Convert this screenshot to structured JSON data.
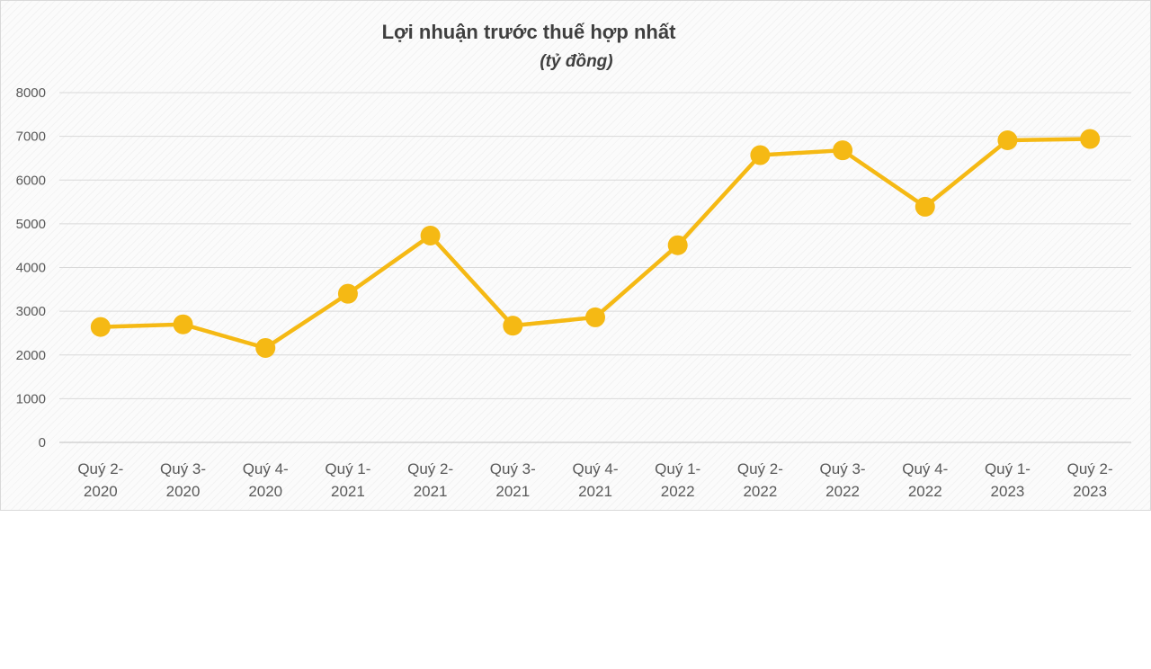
{
  "chart_data": {
    "type": "line",
    "title": "Lợi nhuận trước thuế hợp nhất",
    "subtitle": "(tỷ đồng)",
    "categories": [
      [
        "Quý 2-",
        "2020"
      ],
      [
        "Quý 3-",
        "2020"
      ],
      [
        "Quý 4-",
        "2020"
      ],
      [
        "Quý 1-",
        "2021"
      ],
      [
        "Quý 2-",
        "2021"
      ],
      [
        "Quý 3-",
        "2021"
      ],
      [
        "Quý 4-",
        "2021"
      ],
      [
        "Quý 1-",
        "2022"
      ],
      [
        "Quý 2-",
        "2022"
      ],
      [
        "Quý 3-",
        "2022"
      ],
      [
        "Quý 4-",
        "2022"
      ],
      [
        "Quý 1-",
        "2023"
      ],
      [
        "Quý 2-",
        "2023"
      ]
    ],
    "series": [
      {
        "values": [
          2640,
          2700,
          2160,
          3400,
          4730,
          2670,
          2860,
          4510,
          6570,
          6680,
          5390,
          6910,
          6940
        ],
        "color": "#f5b914"
      }
    ],
    "ylim": [
      0,
      8000
    ],
    "yticks": [
      "0",
      "1000",
      "2000",
      "3000",
      "4000",
      "5000",
      "6000",
      "7000",
      "8000"
    ],
    "grid": true,
    "legend": "none"
  }
}
